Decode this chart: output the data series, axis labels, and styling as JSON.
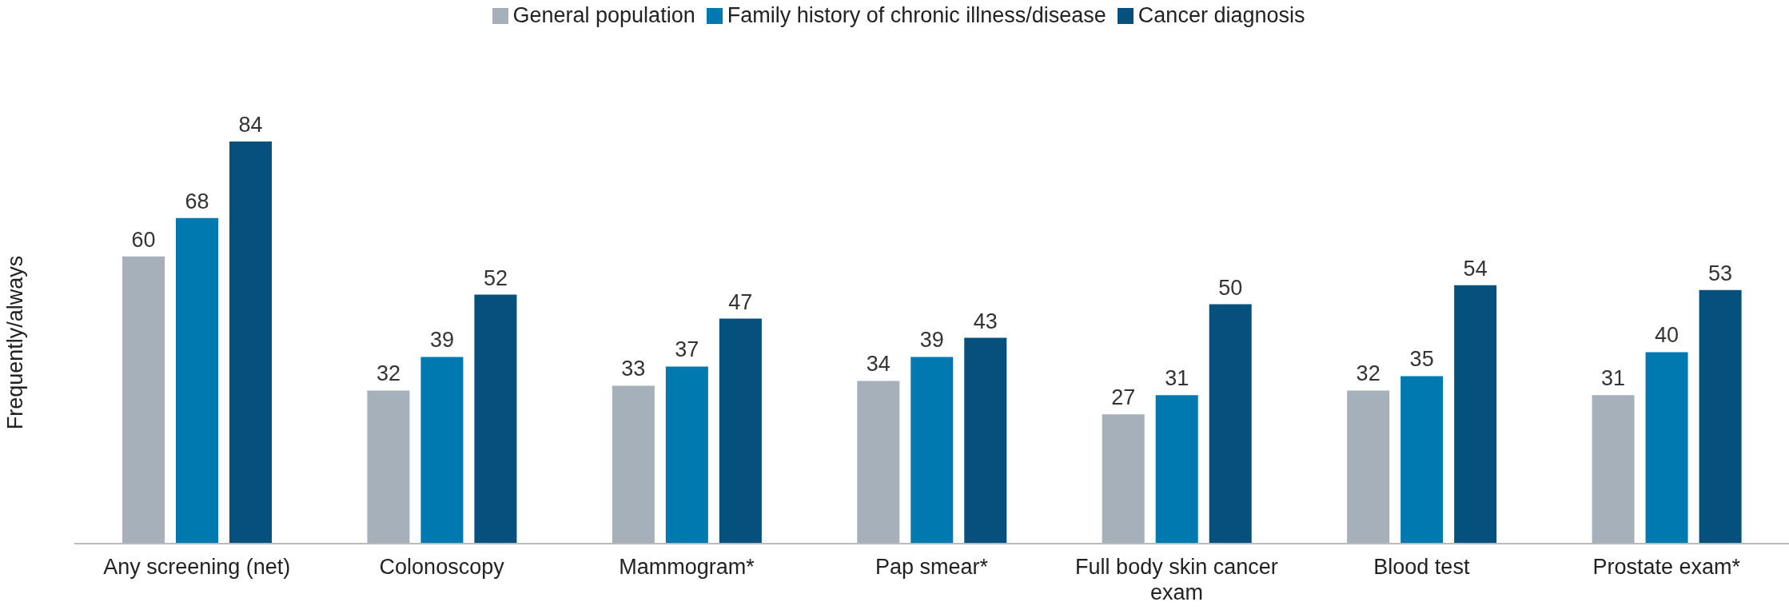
{
  "chart_data": {
    "type": "bar",
    "ylabel": "Frequently/always",
    "categories": [
      "Any screening (net)",
      "Colonoscopy",
      "Mammogram*",
      "Pap smear*",
      "Full body skin cancer exam",
      "Blood test",
      "Prostate exam*"
    ],
    "series": [
      {
        "name": "General population",
        "color": "#a5b0ba",
        "values": [
          60,
          32,
          33,
          34,
          27,
          32,
          31
        ]
      },
      {
        "name": "Family history of chronic illness/disease",
        "color": "#0079b1",
        "values": [
          68,
          39,
          37,
          39,
          31,
          35,
          40
        ]
      },
      {
        "name": "Cancer diagnosis",
        "color": "#05507c",
        "values": [
          84,
          52,
          47,
          43,
          50,
          54,
          53
        ]
      }
    ],
    "data_labels": true,
    "legend": "top",
    "grid": false
  }
}
